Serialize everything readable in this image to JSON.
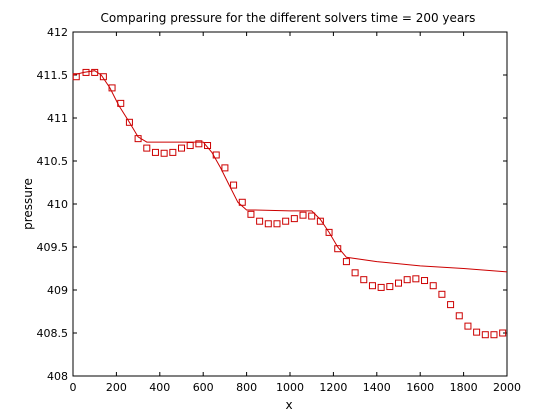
{
  "chart_data": {
    "type": "line",
    "title": "Comparing pressure for the different solvers time = 200 years",
    "xlabel": "x",
    "ylabel": "pressure",
    "xlim": [
      0,
      2000
    ],
    "ylim": [
      408,
      412
    ],
    "xticks": [
      0,
      200,
      400,
      600,
      800,
      1000,
      1200,
      1400,
      1600,
      1800,
      2000
    ],
    "xtick_labels": [
      "0",
      "200",
      "400",
      "600",
      "800",
      "1000",
      "1200",
      "1400",
      "1600",
      "1800",
      "2000"
    ],
    "yticks": [
      408,
      408.5,
      409,
      409.5,
      410,
      410.5,
      411,
      411.5,
      412
    ],
    "ytick_labels": [
      "408",
      "408.5",
      "409",
      "409.5",
      "410",
      "410.5",
      "411",
      "411.5",
      "412"
    ],
    "grid": false,
    "series": [
      {
        "style": "line",
        "color": "#cc0000",
        "x": [
          0,
          50,
          100,
          130,
          170,
          210,
          260,
          300,
          340,
          400,
          500,
          600,
          640,
          680,
          720,
          760,
          800,
          840,
          1000,
          1100,
          1140,
          1180,
          1220,
          1260,
          1400,
          1600,
          1800,
          2000
        ],
        "y": [
          411.5,
          411.53,
          411.55,
          411.5,
          411.35,
          411.15,
          410.95,
          410.78,
          410.72,
          410.72,
          410.72,
          410.72,
          410.6,
          410.42,
          410.22,
          410.02,
          409.93,
          409.93,
          409.92,
          409.92,
          409.82,
          409.67,
          409.5,
          409.38,
          409.33,
          409.28,
          409.25,
          409.21
        ]
      },
      {
        "style": "markers",
        "marker": "square",
        "color": "#cc0000",
        "x": [
          15,
          60,
          100,
          140,
          180,
          220,
          260,
          300,
          340,
          380,
          420,
          460,
          500,
          540,
          580,
          620,
          660,
          700,
          740,
          780,
          820,
          860,
          900,
          940,
          980,
          1020,
          1060,
          1100,
          1140,
          1180,
          1220,
          1260,
          1300,
          1340,
          1380,
          1420,
          1460,
          1500,
          1540,
          1580,
          1620,
          1660,
          1700,
          1740,
          1780,
          1820,
          1860,
          1900,
          1940,
          1980
        ],
        "y": [
          411.48,
          411.53,
          411.53,
          411.48,
          411.35,
          411.17,
          410.95,
          410.76,
          410.65,
          410.6,
          410.59,
          410.6,
          410.65,
          410.68,
          410.7,
          410.68,
          410.57,
          410.42,
          410.22,
          410.02,
          409.88,
          409.8,
          409.77,
          409.77,
          409.8,
          409.83,
          409.87,
          409.86,
          409.8,
          409.67,
          409.48,
          409.33,
          409.2,
          409.12,
          409.05,
          409.03,
          409.04,
          409.08,
          409.12,
          409.13,
          409.11,
          409.05,
          408.95,
          408.83,
          408.7,
          408.58,
          408.51,
          408.48,
          408.48,
          408.5
        ]
      }
    ]
  }
}
